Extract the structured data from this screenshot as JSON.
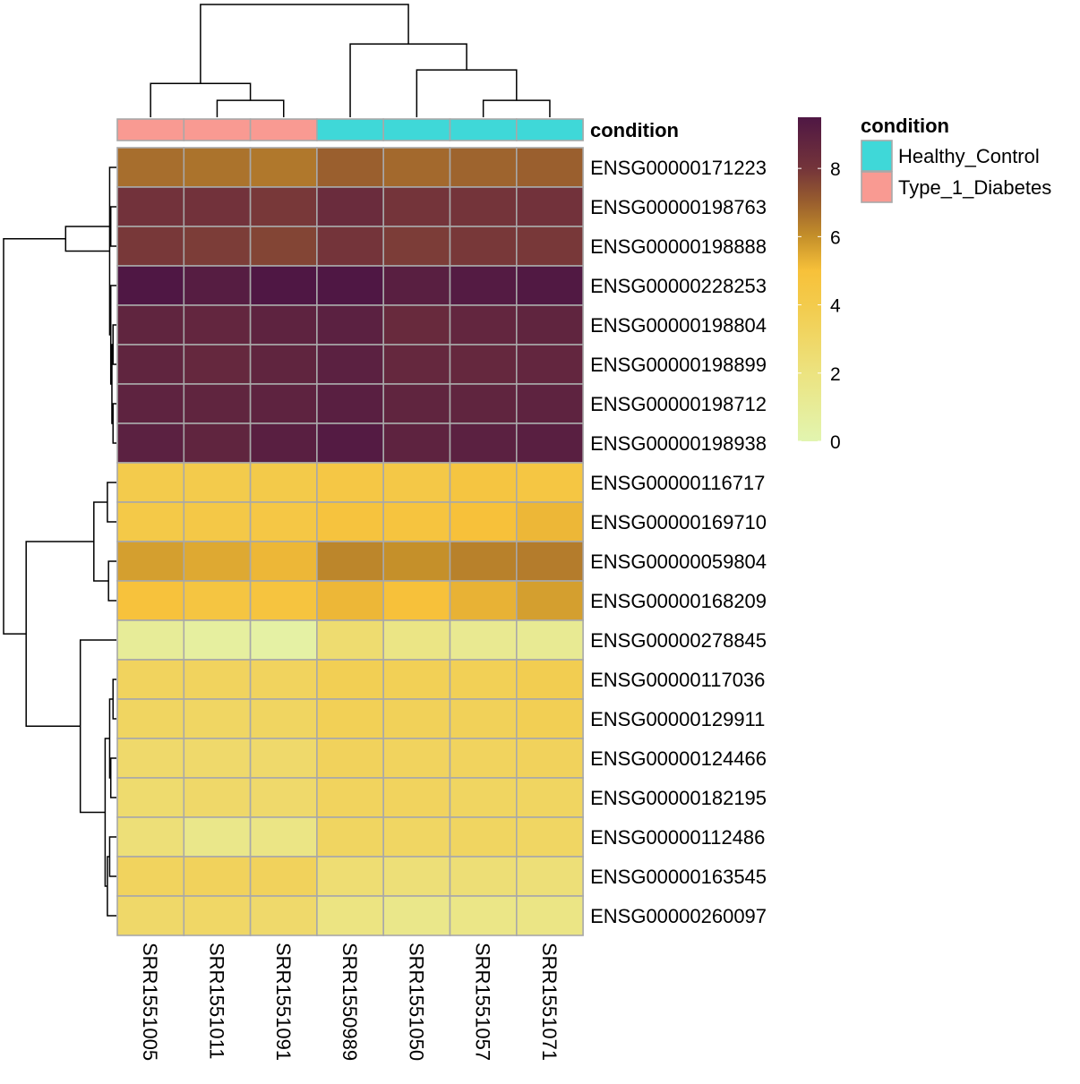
{
  "chart_data": {
    "type": "heatmap",
    "title": "",
    "samples": [
      "SRR1551005",
      "SRR1551011",
      "SRR1551091",
      "SRR1550989",
      "SRR1551050",
      "SRR1551057",
      "SRR1551071"
    ],
    "genes": [
      "ENSG00000171223",
      "ENSG00000198763",
      "ENSG00000198888",
      "ENSG00000228253",
      "ENSG00000198804",
      "ENSG00000198899",
      "ENSG00000198712",
      "ENSG00000198938",
      "ENSG00000116717",
      "ENSG00000169710",
      "ENSG00000059804",
      "ENSG00000168209",
      "ENSG00000278845",
      "ENSG00000117036",
      "ENSG00000129911",
      "ENSG00000124466",
      "ENSG00000182195",
      "ENSG00000112486",
      "ENSG00000163545",
      "ENSG00000260097"
    ],
    "values": [
      [
        6.7,
        6.6,
        6.5,
        7.0,
        6.8,
        6.9,
        7.0
      ],
      [
        8.1,
        8.1,
        7.9,
        8.4,
        8.0,
        8.0,
        8.1
      ],
      [
        7.9,
        7.8,
        7.6,
        8.0,
        7.8,
        7.9,
        7.9
      ],
      [
        9.5,
        9.2,
        9.6,
        9.6,
        9.1,
        9.3,
        9.4
      ],
      [
        8.8,
        8.7,
        8.9,
        9.0,
        8.5,
        8.7,
        8.8
      ],
      [
        8.8,
        8.6,
        8.8,
        9.0,
        8.6,
        8.6,
        8.7
      ],
      [
        8.9,
        8.8,
        8.9,
        9.1,
        8.8,
        8.8,
        8.9
      ],
      [
        9.0,
        8.8,
        9.1,
        9.3,
        8.9,
        9.0,
        9.1
      ],
      [
        4.0,
        4.0,
        4.1,
        4.4,
        4.3,
        4.6,
        4.5
      ],
      [
        4.2,
        4.3,
        4.4,
        4.8,
        4.7,
        5.0,
        5.2
      ],
      [
        5.7,
        5.5,
        5.2,
        6.2,
        6.0,
        6.3,
        6.4
      ],
      [
        4.9,
        4.6,
        4.7,
        5.2,
        5.0,
        5.3,
        5.7
      ],
      [
        1.0,
        0.7,
        0.5,
        2.6,
        1.8,
        1.3,
        1.2
      ],
      [
        3.3,
        3.3,
        3.3,
        3.7,
        3.6,
        3.6,
        3.8
      ],
      [
        3.2,
        3.1,
        3.2,
        3.6,
        3.5,
        3.5,
        3.7
      ],
      [
        2.8,
        2.8,
        2.8,
        3.4,
        3.3,
        3.3,
        3.4
      ],
      [
        2.7,
        2.9,
        2.8,
        3.3,
        3.3,
        3.2,
        3.2
      ],
      [
        2.3,
        1.6,
        1.8,
        3.2,
        3.1,
        3.2,
        3.1
      ],
      [
        3.3,
        3.4,
        3.4,
        2.5,
        2.3,
        2.4,
        2.3
      ],
      [
        2.9,
        3.0,
        2.8,
        1.9,
        1.6,
        1.7,
        1.8
      ]
    ],
    "condition": [
      "Type_1_Diabetes",
      "Type_1_Diabetes",
      "Type_1_Diabetes",
      "Healthy_Control",
      "Healthy_Control",
      "Healthy_Control",
      "Healthy_Control"
    ],
    "annotation_title": "condition",
    "legend": {
      "title": "condition",
      "entries": [
        {
          "label": "Healthy_Control",
          "color": "#3fd8d8"
        },
        {
          "label": "Type_1_Diabetes",
          "color": "#f99a92"
        }
      ]
    },
    "colorbar": {
      "ticks": [
        0,
        2,
        4,
        6,
        8
      ],
      "tick_labels": [
        "0",
        "2",
        "4",
        "6",
        "8"
      ],
      "range": [
        0,
        9.5
      ],
      "stops": [
        {
          "v": 0.0,
          "color": "#e2f5b0"
        },
        {
          "v": 2.0,
          "color": "#ece380"
        },
        {
          "v": 4.0,
          "color": "#f3cb4c"
        },
        {
          "v": 5.0,
          "color": "#f7c13a"
        },
        {
          "v": 6.0,
          "color": "#c5902a"
        },
        {
          "v": 7.0,
          "color": "#9a5f2e"
        },
        {
          "v": 8.0,
          "color": "#74343a"
        },
        {
          "v": 9.5,
          "color": "#4f1744"
        }
      ]
    },
    "column_dendrogram": {
      "merges": [
        [
          2,
          3,
          0.15
        ],
        [
          1,
          -1,
          0.3
        ],
        [
          6,
          7,
          0.15
        ],
        [
          5,
          -3,
          0.42
        ],
        [
          4,
          -4,
          0.65
        ],
        [
          -2,
          -5,
          1.0
        ]
      ]
    },
    "row_dendrogram": {
      "merges": [
        [
          2,
          3,
          0.05
        ],
        [
          5,
          6,
          0.03
        ],
        [
          7,
          8,
          0.03
        ],
        [
          -2,
          -3,
          0.04
        ],
        [
          4,
          -4,
          0.05
        ],
        [
          1,
          -5,
          0.06
        ],
        [
          -1,
          -6,
          0.45
        ],
        [
          9,
          10,
          0.08
        ],
        [
          11,
          12,
          0.07
        ],
        [
          -8,
          -9,
          0.2
        ],
        [
          14,
          15,
          0.03
        ],
        [
          16,
          17,
          0.05
        ],
        [
          18,
          19,
          0.06
        ],
        [
          -11,
          -12,
          0.06
        ],
        [
          -13,
          20,
          0.08
        ],
        [
          -14,
          -15,
          0.1
        ],
        [
          13,
          -16,
          0.32
        ],
        [
          -10,
          -17,
          0.8
        ],
        [
          -7,
          -18,
          1.0
        ]
      ]
    }
  }
}
